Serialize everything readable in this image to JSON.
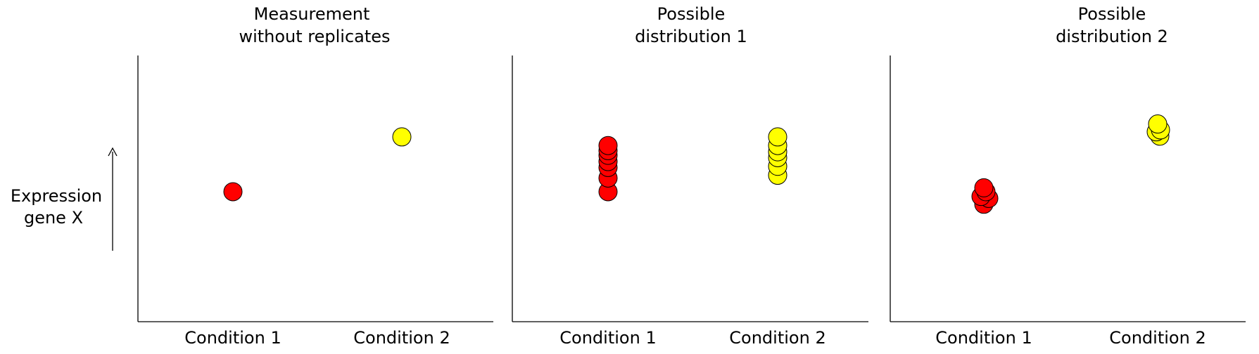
{
  "y_axis": {
    "label_lines": [
      "Expression",
      "gene X"
    ]
  },
  "colors": {
    "condition_1": "#ff0000",
    "condition_2": "#ffff00",
    "outline": "#000000"
  },
  "chart_data": [
    {
      "type": "scatter",
      "title_lines": [
        "Measurement",
        "without replicates"
      ],
      "categories": [
        "Condition 1",
        "Condition 2"
      ],
      "series": [
        {
          "category": "Condition 1",
          "values": [
            1.32
          ]
        },
        {
          "category": "Condition 2",
          "values": [
            2.72
          ]
        }
      ],
      "ylim": [
        -2.0,
        4.8
      ]
    },
    {
      "type": "scatter",
      "title_lines": [
        "Possible",
        "distribution 1"
      ],
      "categories": [
        "Condition 1",
        "Condition 2"
      ],
      "series": [
        {
          "category": "Condition 1",
          "values": [
            1.32,
            1.67,
            1.94,
            2.09,
            2.25,
            2.37,
            2.5
          ]
        },
        {
          "category": "Condition 2",
          "values": [
            1.74,
            1.97,
            2.19,
            2.34,
            2.5,
            2.72
          ]
        }
      ],
      "ylim": [
        -2.0,
        4.8
      ]
    },
    {
      "type": "scatter",
      "title_lines": [
        "Possible",
        "distribution 2"
      ],
      "categories": [
        "Condition 1",
        "Condition 2"
      ],
      "series": [
        {
          "category": "Condition 1",
          "values": [
            1.0,
            1.15,
            1.2,
            1.32,
            1.42
          ]
        },
        {
          "category": "Condition 2",
          "values": [
            2.74,
            2.85,
            2.9,
            3.05
          ]
        }
      ],
      "ylim": [
        -2.0,
        4.8
      ]
    }
  ]
}
